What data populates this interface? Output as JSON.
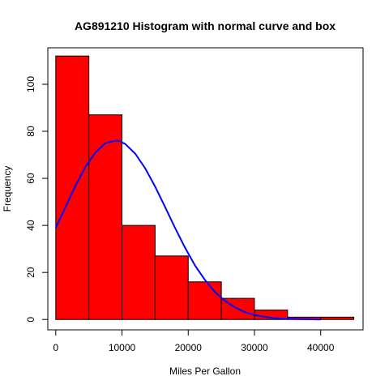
{
  "chart_data": {
    "type": "bar",
    "title": "AG891210 Histogram with normal curve and box",
    "xlabel": "Miles Per Gallon",
    "ylabel": "Frequency",
    "bins": [
      {
        "start": 0,
        "end": 5000,
        "count": 112
      },
      {
        "start": 5000,
        "end": 10000,
        "count": 87
      },
      {
        "start": 10000,
        "end": 15000,
        "count": 40
      },
      {
        "start": 15000,
        "end": 20000,
        "count": 27
      },
      {
        "start": 20000,
        "end": 25000,
        "count": 16
      },
      {
        "start": 25000,
        "end": 30000,
        "count": 9
      },
      {
        "start": 30000,
        "end": 35000,
        "count": 4
      },
      {
        "start": 35000,
        "end": 40000,
        "count": 1
      },
      {
        "start": 40000,
        "end": 45000,
        "count": 1
      }
    ],
    "x_ticks": [
      0,
      10000,
      20000,
      30000,
      40000
    ],
    "y_ticks": [
      0,
      20,
      40,
      60,
      80,
      100
    ],
    "xlim": [
      -1200,
      46400
    ],
    "ylim": [
      -4.4,
      115.5
    ],
    "grid": false,
    "bar_color": "#ff0000",
    "bar_edge_color": "#000000",
    "curve": {
      "name": "normal curve",
      "color": "#0000ff",
      "x": [
        0,
        1500,
        3000,
        4500,
        6000,
        7500,
        9000,
        9500,
        10500,
        12000,
        13500,
        15000,
        16500,
        18000,
        19500,
        21000,
        22500,
        24000,
        25500,
        27000,
        28500,
        30000,
        32000,
        34000,
        36000,
        38000,
        40000
      ],
      "y": [
        39,
        48,
        57,
        65,
        71,
        75,
        76,
        76,
        74.6,
        70.5,
        64.3,
        56.5,
        47.9,
        39,
        30.6,
        23.1,
        16.9,
        11.8,
        8,
        5.2,
        3.2,
        1.9,
        0.9,
        0.4,
        0.2,
        0.1,
        0
      ]
    }
  }
}
